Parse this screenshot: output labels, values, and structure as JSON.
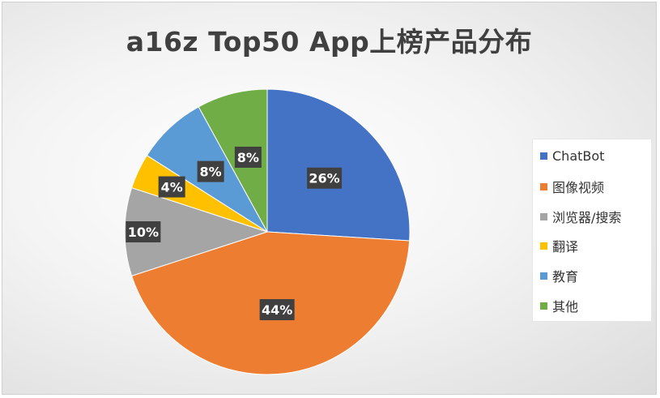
{
  "chart_data": {
    "type": "pie",
    "title": "a16z Top50 App上榜产品分布",
    "categories": [
      "ChatBot",
      "图像视频",
      "浏览器/搜索",
      "翻译",
      "教育",
      "其他"
    ],
    "values": [
      26,
      44,
      10,
      4,
      8,
      8
    ],
    "data_labels": [
      "26%",
      "44%",
      "10%",
      "4%",
      "8%",
      "8%"
    ],
    "colors": [
      "#4472C4",
      "#ED7D31",
      "#A5A5A5",
      "#FFC000",
      "#5B9BD5",
      "#70AD47"
    ],
    "legend_position": "right",
    "start_angle": "12 o'clock, clockwise"
  }
}
